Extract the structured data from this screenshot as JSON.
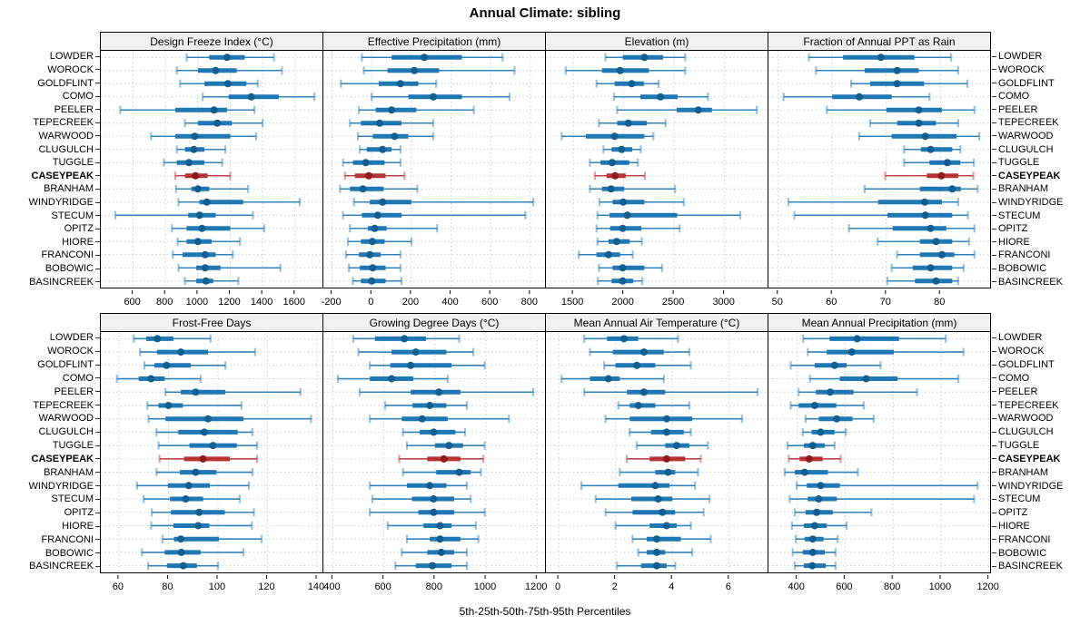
{
  "title": "Annual Climate: sibling",
  "footer": "5th-25th-50th-75th-95th Percentiles",
  "percentiles": [
    5,
    25,
    50,
    75,
    95
  ],
  "stations": [
    "LOWDER",
    "WOROCK",
    "GOLDFLINT",
    "COMO",
    "PEELER",
    "TEPECREEK",
    "WARWOOD",
    "CLUGULCH",
    "TUGGLE",
    "CASEYPEAK",
    "BRANHAM",
    "WINDYRIDGE",
    "STECUM",
    "OPITZ",
    "HIORE",
    "FRANCONI",
    "BOBOWIC",
    "BASINCREEK"
  ],
  "highlight_station": "CASEYPEAK",
  "colors": {
    "series_blue": "#1F77B4",
    "series_blue_dark": "#125E91",
    "highlight_red": "#B73333",
    "highlight_red_dark": "#8C1B1B",
    "strip_bg": "#F0F0F0",
    "grid": "#CBCBCB",
    "border": "#000000"
  },
  "chart_data": [
    {
      "type": "percentile_range",
      "title": "Design Freeze Index (°C)",
      "xlim": [
        400,
        1770
      ],
      "ticks": [
        600,
        800,
        1000,
        1200,
        1400,
        1600
      ],
      "values": [
        [
          930,
          1070,
          1180,
          1290,
          1470
        ],
        [
          870,
          1000,
          1110,
          1240,
          1520
        ],
        [
          890,
          1040,
          1185,
          1300,
          1370
        ],
        [
          1030,
          1190,
          1330,
          1500,
          1720
        ],
        [
          520,
          860,
          1100,
          1180,
          1350
        ],
        [
          920,
          1000,
          1120,
          1210,
          1400
        ],
        [
          710,
          860,
          980,
          1200,
          1360
        ],
        [
          870,
          920,
          975,
          1040,
          1170
        ],
        [
          790,
          870,
          945,
          1040,
          1150
        ],
        [
          860,
          920,
          985,
          1060,
          1200
        ],
        [
          865,
          960,
          1000,
          1070,
          1310
        ],
        [
          880,
          1010,
          1055,
          1280,
          1630
        ],
        [
          490,
          940,
          1010,
          1110,
          1340
        ],
        [
          840,
          930,
          1025,
          1200,
          1410
        ],
        [
          875,
          930,
          1000,
          1085,
          1260
        ],
        [
          845,
          905,
          1045,
          1110,
          1215
        ],
        [
          880,
          990,
          1045,
          1140,
          1510
        ],
        [
          920,
          990,
          1050,
          1095,
          1250
        ]
      ]
    },
    {
      "type": "percentile_range",
      "title": "Effective Precipitation (mm)",
      "xlim": [
        -244,
        874
      ],
      "ticks": [
        -200,
        0,
        200,
        400,
        600,
        800
      ],
      "values": [
        [
          -50,
          100,
          265,
          455,
          660
        ],
        [
          -40,
          80,
          215,
          340,
          720
        ],
        [
          -155,
          35,
          145,
          235,
          325
        ],
        [
          0,
          185,
          310,
          455,
          695
        ],
        [
          -65,
          20,
          100,
          225,
          515
        ],
        [
          -110,
          -55,
          40,
          150,
          310
        ],
        [
          -70,
          5,
          115,
          185,
          310
        ],
        [
          -60,
          -25,
          55,
          100,
          145
        ],
        [
          -145,
          -95,
          -30,
          65,
          145
        ],
        [
          -135,
          -85,
          -15,
          70,
          165
        ],
        [
          -160,
          -110,
          -45,
          60,
          230
        ],
        [
          -90,
          -10,
          55,
          200,
          815
        ],
        [
          -145,
          -50,
          30,
          150,
          775
        ],
        [
          -110,
          -20,
          15,
          75,
          330
        ],
        [
          -120,
          -55,
          3,
          65,
          200
        ],
        [
          -130,
          -65,
          -10,
          45,
          145
        ],
        [
          -115,
          -60,
          5,
          70,
          145
        ],
        [
          -95,
          -55,
          0,
          70,
          150
        ]
      ]
    },
    {
      "type": "percentile_range",
      "title": "Elevation (m)",
      "xlim": [
        1229,
        3426
      ],
      "ticks": [
        1500,
        2000,
        2500,
        3000
      ],
      "values": [
        [
          1820,
          1990,
          2205,
          2390,
          2610
        ],
        [
          1425,
          1785,
          1965,
          2250,
          2610
        ],
        [
          1730,
          1910,
          2080,
          2200,
          2345
        ],
        [
          1905,
          2165,
          2365,
          2535,
          2835
        ],
        [
          1935,
          2525,
          2740,
          2875,
          3320
        ],
        [
          1755,
          1935,
          2045,
          2230,
          2415
        ],
        [
          1385,
          1625,
          1910,
          2205,
          2295
        ],
        [
          1800,
          1880,
          1980,
          2085,
          2170
        ],
        [
          1665,
          1770,
          1885,
          2055,
          2140
        ],
        [
          1715,
          1830,
          1915,
          2020,
          2210
        ],
        [
          1665,
          1785,
          1875,
          2005,
          2510
        ],
        [
          1760,
          1890,
          1995,
          2205,
          2595
        ],
        [
          1740,
          1860,
          2035,
          2530,
          3155
        ],
        [
          1730,
          1865,
          1990,
          2175,
          2555
        ],
        [
          1740,
          1850,
          1930,
          2060,
          2180
        ],
        [
          1555,
          1730,
          1850,
          1965,
          2090
        ],
        [
          1755,
          1890,
          1990,
          2205,
          2380
        ],
        [
          1745,
          1880,
          1990,
          2095,
          2185
        ]
      ]
    },
    {
      "type": "percentile_range",
      "title": "Fraction of Annual PPT as Rain",
      "xlim": [
        48.2,
        89.2
      ],
      "ticks": [
        50,
        60,
        70,
        80
      ],
      "values": [
        [
          55.7,
          62,
          69,
          75.2,
          82
        ],
        [
          57,
          66,
          72,
          76,
          83.3
        ],
        [
          63.5,
          67,
          72,
          77,
          85
        ],
        [
          51,
          60,
          65,
          71,
          78
        ],
        [
          59,
          70,
          76,
          80.3,
          86.3
        ],
        [
          67,
          72,
          76,
          79.2,
          83.3
        ],
        [
          65,
          71,
          77.2,
          83,
          87.2
        ],
        [
          73.3,
          76.4,
          78.2,
          82.2,
          83.7
        ],
        [
          73.3,
          78,
          81.3,
          83.7,
          86.2
        ],
        [
          69.8,
          77.5,
          80.2,
          83.3,
          86.1
        ],
        [
          66,
          76.2,
          82.2,
          83.8,
          86.9
        ],
        [
          51.9,
          68.5,
          77.1,
          80.3,
          83.3
        ],
        [
          53,
          70.2,
          77.2,
          82.2,
          85.1
        ],
        [
          63.1,
          71.2,
          78.2,
          81.1,
          86.3
        ],
        [
          68.4,
          76.2,
          79.2,
          82.2,
          85.3
        ],
        [
          72,
          76.2,
          80.3,
          82.6,
          86.3
        ],
        [
          71,
          74.9,
          78.2,
          82.2,
          84.3
        ],
        [
          70.2,
          75.3,
          79.2,
          82.2,
          83.3
        ]
      ]
    },
    {
      "type": "percentile_range",
      "title": "Frost-Free Days",
      "xlim": [
        52.7,
        142.2
      ],
      "ticks": [
        60,
        80,
        100,
        120,
        140
      ],
      "values": [
        [
          66,
          71,
          75.5,
          82,
          97
        ],
        [
          68.5,
          75.4,
          85,
          96,
          115
        ],
        [
          70.3,
          74.3,
          79.2,
          89,
          103
        ],
        [
          59.2,
          68,
          73,
          78.5,
          93
        ],
        [
          78.8,
          85,
          91,
          103,
          133.3
        ],
        [
          71.5,
          76,
          80,
          85.8,
          109.5
        ],
        [
          72,
          78.8,
          96,
          110.3,
          137.6
        ],
        [
          75.2,
          84,
          94.5,
          108,
          113.9
        ],
        [
          76,
          88.5,
          98,
          107.6,
          115.8
        ],
        [
          76.4,
          86.3,
          94,
          104.8,
          115.8
        ],
        [
          75.2,
          84.6,
          91,
          99.4,
          113.9
        ],
        [
          67.3,
          79.8,
          88.2,
          96.7,
          112.5
        ],
        [
          70,
          80.6,
          87,
          94,
          108.8
        ],
        [
          73.3,
          81,
          92.4,
          102.8,
          114.5
        ],
        [
          73,
          82,
          92,
          96.5,
          113.7
        ],
        [
          77.6,
          82.2,
          85,
          100.4,
          117.6
        ],
        [
          69.3,
          78.5,
          85.2,
          93,
          110.3
        ],
        [
          71.8,
          79.4,
          86,
          91.5,
          100
        ]
      ]
    },
    {
      "type": "percentile_range",
      "title": "Growing Degree Days (°C)",
      "xlim": [
        363,
        1231
      ],
      "ticks": [
        400,
        600,
        800,
        1000,
        1200
      ],
      "values": [
        [
          480,
          565,
          680,
          765,
          895
        ],
        [
          500,
          630,
          725,
          845,
          950
        ],
        [
          545,
          625,
          705,
          865,
          995
        ],
        [
          420,
          545,
          630,
          715,
          850
        ],
        [
          505,
          705,
          815,
          900,
          1185
        ],
        [
          605,
          712,
          780,
          845,
          925
        ],
        [
          545,
          670,
          750,
          850,
          1090
        ],
        [
          675,
          740,
          795,
          880,
          918
        ],
        [
          690,
          800,
          855,
          910,
          995
        ],
        [
          660,
          770,
          835,
          900,
          990
        ],
        [
          675,
          805,
          895,
          940,
          980
        ],
        [
          545,
          690,
          780,
          845,
          925
        ],
        [
          555,
          710,
          795,
          875,
          940
        ],
        [
          545,
          735,
          795,
          875,
          995
        ],
        [
          615,
          755,
          820,
          865,
          960
        ],
        [
          690,
          780,
          820,
          900,
          970
        ],
        [
          670,
          770,
          825,
          875,
          925
        ],
        [
          645,
          725,
          790,
          865,
          925
        ]
      ]
    },
    {
      "type": "percentile_range",
      "title": "Mean Annual Air Temperature (°C)",
      "xlim": [
        -0.45,
        7.35
      ],
      "ticks": [
        0,
        2,
        4,
        6
      ],
      "values": [
        [
          0.9,
          1.7,
          2.3,
          2.8,
          4.2
        ],
        [
          1.1,
          1.9,
          3.0,
          3.7,
          4.6
        ],
        [
          1.6,
          2.0,
          2.75,
          3.4,
          4.65
        ],
        [
          0.1,
          1.1,
          1.75,
          2.15,
          3.7
        ],
        [
          0.9,
          2.4,
          3.0,
          3.75,
          7.0
        ],
        [
          2.1,
          2.5,
          2.8,
          3.4,
          4.6
        ],
        [
          1.65,
          2.5,
          3.8,
          4.7,
          6.45
        ],
        [
          2.5,
          3.25,
          3.8,
          4.4,
          4.65
        ],
        [
          2.75,
          3.75,
          4.15,
          4.6,
          5.25
        ],
        [
          2.4,
          3.2,
          3.8,
          4.45,
          5.0
        ],
        [
          2.15,
          3.4,
          3.85,
          4.1,
          4.9
        ],
        [
          0.8,
          2.1,
          3.4,
          3.9,
          4.8
        ],
        [
          1.3,
          2.55,
          3.5,
          4.0,
          5.3
        ],
        [
          1.65,
          2.6,
          3.65,
          4.1,
          5.1
        ],
        [
          2.0,
          3.2,
          3.8,
          4.15,
          4.65
        ],
        [
          2.6,
          3.1,
          3.45,
          4.3,
          5.35
        ],
        [
          2.8,
          3.1,
          3.45,
          3.75,
          4.7
        ],
        [
          2.05,
          2.9,
          3.45,
          3.8,
          4.1
        ]
      ]
    },
    {
      "type": "percentile_range",
      "title": "Mean Annual Precipitation (mm)",
      "xlim": [
        280,
        1205
      ],
      "ticks": [
        400,
        600,
        800,
        1000,
        1200
      ],
      "values": [
        [
          425,
          535,
          650,
          825,
          1020
        ],
        [
          444,
          523,
          628,
          803,
          1094
        ],
        [
          373,
          473,
          556,
          606,
          748
        ],
        [
          453,
          578,
          688,
          819,
          1073
        ],
        [
          406,
          478,
          538,
          635,
          900
        ],
        [
          373,
          406,
          473,
          563,
          678
        ],
        [
          435,
          490,
          565,
          631,
          719
        ],
        [
          423,
          460,
          498,
          556,
          603
        ],
        [
          360,
          428,
          465,
          515,
          556
        ],
        [
          365,
          410,
          450,
          506,
          581
        ],
        [
          348,
          390,
          431,
          528,
          653
        ],
        [
          398,
          440,
          498,
          578,
          1153
        ],
        [
          369,
          444,
          490,
          565,
          1138
        ],
        [
          390,
          435,
          481,
          548,
          710
        ],
        [
          378,
          428,
          473,
          523,
          606
        ],
        [
          394,
          431,
          465,
          510,
          569
        ],
        [
          381,
          423,
          465,
          515,
          560
        ],
        [
          390,
          428,
          463,
          519,
          560
        ]
      ]
    }
  ]
}
